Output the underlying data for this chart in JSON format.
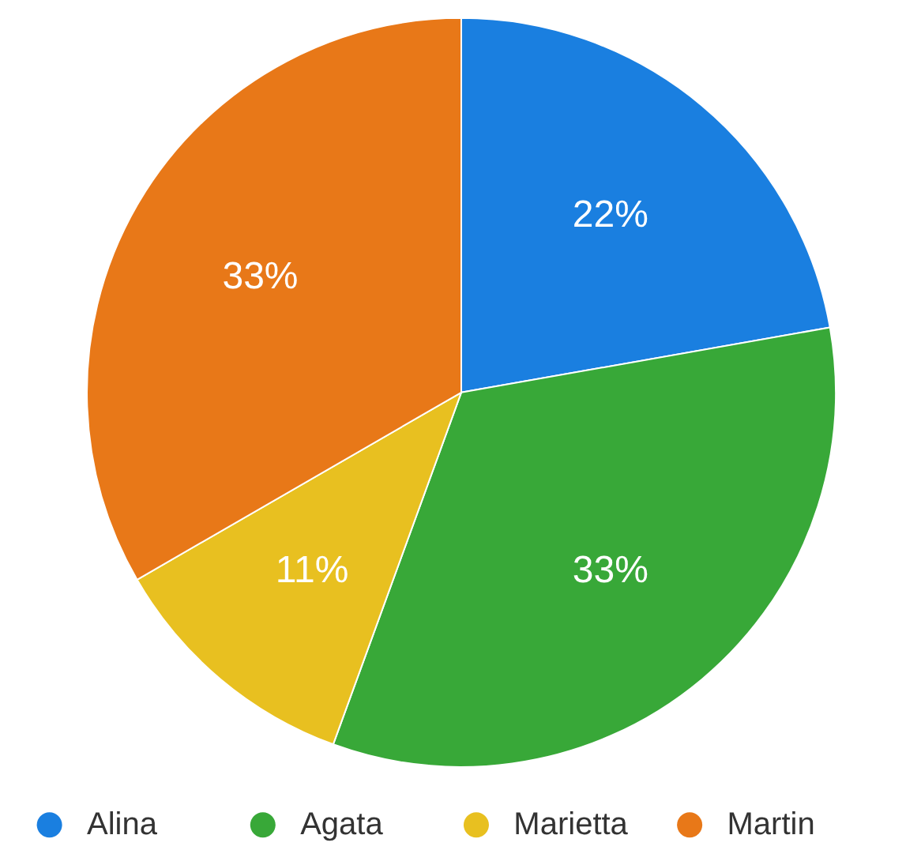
{
  "chart_data": {
    "type": "pie",
    "categories": [
      "Alina",
      "Agata",
      "Marietta",
      "Martin"
    ],
    "values": [
      22,
      33,
      11,
      33
    ],
    "value_labels": [
      "22%",
      "33%",
      "11%",
      "33%"
    ],
    "colors": [
      "#1a7fe0",
      "#38a838",
      "#e8c020",
      "#e87818"
    ],
    "legend": "bottom"
  }
}
